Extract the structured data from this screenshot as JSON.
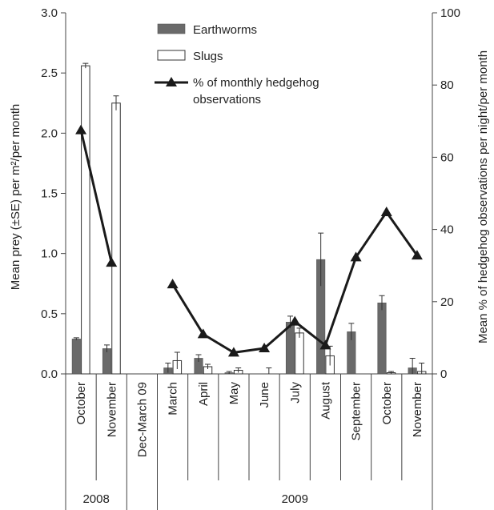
{
  "chart_data": {
    "type": "bar",
    "categories": [
      "October",
      "November",
      "Dec-March 09",
      "March",
      "April",
      "May",
      "June",
      "July",
      "August",
      "September",
      "October",
      "November"
    ],
    "year_groups": [
      {
        "label": "2008",
        "first": 0,
        "last": 1
      },
      {
        "label": "2009",
        "first": 3,
        "last": 11
      }
    ],
    "ylabel_left": "Mean prey (±SE) per m²/per month",
    "ylabel_right": "Mean % of hedgehog observations per night/per month",
    "ylim_left": [
      0,
      3.0
    ],
    "yticks_left": [
      "0.0",
      "0.5",
      "1.0",
      "1.5",
      "2.0",
      "2.5",
      "3.0"
    ],
    "ylim_right": [
      0,
      100
    ],
    "yticks_right": [
      "0",
      "20",
      "40",
      "60",
      "80",
      "100"
    ],
    "legend": {
      "position": "top-center",
      "entries": [
        "Earthworms",
        "Slugs",
        "% of monthly hedgehog",
        "observations"
      ]
    },
    "series": [
      {
        "name": "Earthworms",
        "kind": "bar",
        "color": "#6a6a6a",
        "values": [
          0.29,
          0.21,
          null,
          0.05,
          0.13,
          0.01,
          0.0,
          0.43,
          0.95,
          0.35,
          0.59,
          0.05
        ],
        "errors": [
          0.01,
          0.03,
          null,
          0.04,
          0.03,
          0.01,
          0.0,
          0.05,
          0.22,
          0.07,
          0.06,
          0.08
        ]
      },
      {
        "name": "Slugs",
        "kind": "bar",
        "color": "#ffffff",
        "values": [
          2.56,
          2.25,
          null,
          0.11,
          0.06,
          0.03,
          0.0,
          0.34,
          0.15,
          0.0,
          0.01,
          0.02
        ],
        "errors": [
          0.02,
          0.06,
          null,
          0.07,
          0.02,
          0.02,
          0.05,
          0.04,
          0.08,
          0.0,
          0.01,
          0.07
        ]
      },
      {
        "name": "% of monthly hedgehog observations",
        "kind": "line",
        "axis": "right",
        "color": "#1a1a1a",
        "values": [
          67.5,
          30.8,
          null,
          24.8,
          11.0,
          5.9,
          7.1,
          14.5,
          7.9,
          32.3,
          44.8,
          32.8
        ]
      }
    ]
  }
}
